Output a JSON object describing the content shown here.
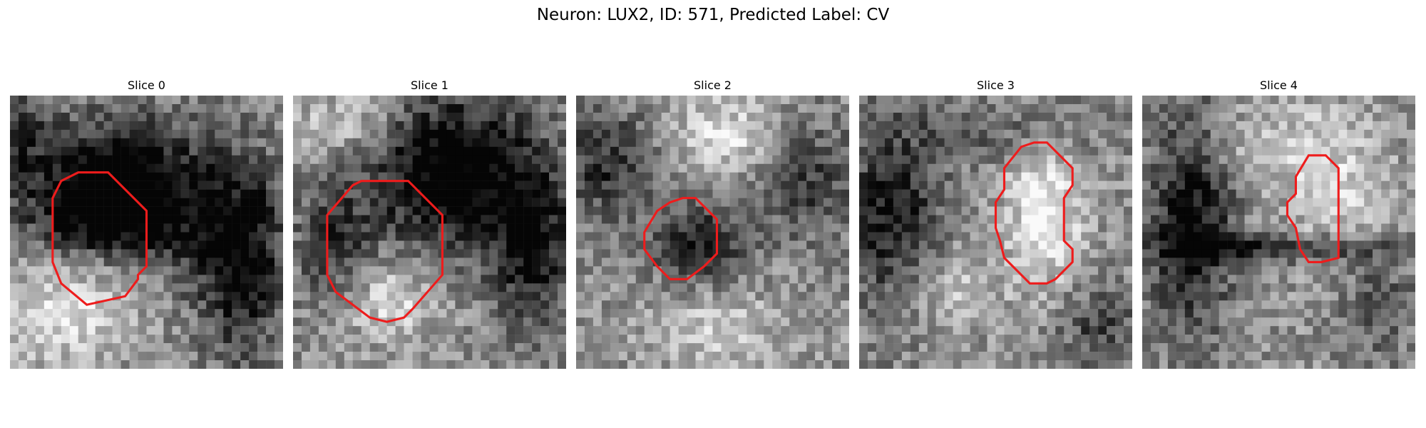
{
  "figure": {
    "title": "Neuron: LUX2, ID: 571, Predicted Label: CV"
  },
  "colors": {
    "contour": "#ee1c1c",
    "background": "#ffffff"
  },
  "grid_size": 32,
  "slices": [
    {
      "title": "Slice 0",
      "contour": [
        [
          9.0,
          9.0
        ],
        [
          11.5,
          9.0
        ],
        [
          16.0,
          13.5
        ],
        [
          16.0,
          20.0
        ],
        [
          15.0,
          21.0
        ],
        [
          15.0,
          21.5
        ],
        [
          13.5,
          23.5
        ],
        [
          9.0,
          24.5
        ],
        [
          6.0,
          22.0
        ],
        [
          5.0,
          19.5
        ],
        [
          5.0,
          12.0
        ],
        [
          6.0,
          10.0
        ],
        [
          8.0,
          9.0
        ]
      ],
      "blobs": [
        [
          0.42,
          0.38,
          0.34,
          0.28,
          -0.72
        ],
        [
          0.35,
          0.45,
          0.22,
          0.22,
          -0.28
        ],
        [
          0.38,
          0.62,
          0.2,
          0.18,
          0.3
        ],
        [
          0.85,
          0.6,
          0.16,
          0.35,
          -0.55
        ],
        [
          0.18,
          0.78,
          0.25,
          0.2,
          0.35
        ],
        [
          0.0,
          0.15,
          0.15,
          0.2,
          -0.3
        ]
      ]
    },
    {
      "title": "Slice 1",
      "contour": [
        [
          8.0,
          10.0
        ],
        [
          13.5,
          10.0
        ],
        [
          17.5,
          14.0
        ],
        [
          17.5,
          21.0
        ],
        [
          14.0,
          25.0
        ],
        [
          13.0,
          26.0
        ],
        [
          11.0,
          26.5
        ],
        [
          9.0,
          26.0
        ],
        [
          5.0,
          23.0
        ],
        [
          4.0,
          21.0
        ],
        [
          4.0,
          14.0
        ],
        [
          7.0,
          10.5
        ]
      ],
      "blobs": [
        [
          0.58,
          0.28,
          0.3,
          0.28,
          -0.7
        ],
        [
          0.88,
          0.55,
          0.15,
          0.3,
          -0.5
        ],
        [
          0.15,
          0.55,
          0.14,
          0.22,
          -0.35
        ],
        [
          0.35,
          0.75,
          0.18,
          0.15,
          0.3
        ],
        [
          0.2,
          0.1,
          0.2,
          0.12,
          0.25
        ]
      ]
    },
    {
      "title": "Slice 2",
      "contour": [
        [
          12.5,
          12.0
        ],
        [
          14.0,
          12.0
        ],
        [
          16.5,
          14.5
        ],
        [
          16.5,
          18.5
        ],
        [
          15.0,
          20.0
        ],
        [
          13.0,
          21.5
        ],
        [
          11.0,
          21.5
        ],
        [
          9.5,
          20.0
        ],
        [
          8.0,
          18.0
        ],
        [
          8.0,
          16.0
        ],
        [
          9.5,
          13.5
        ],
        [
          11.0,
          12.5
        ]
      ],
      "blobs": [
        [
          0.45,
          0.55,
          0.17,
          0.15,
          -0.45
        ],
        [
          0.12,
          0.25,
          0.2,
          0.2,
          -0.4
        ],
        [
          0.85,
          0.3,
          0.18,
          0.22,
          -0.35
        ],
        [
          0.55,
          0.15,
          0.25,
          0.15,
          0.3
        ],
        [
          0.5,
          0.85,
          0.25,
          0.15,
          0.25
        ]
      ]
    },
    {
      "title": "Slice 3",
      "contour": [
        [
          20.5,
          5.5
        ],
        [
          22.0,
          5.5
        ],
        [
          25.0,
          8.5
        ],
        [
          25.0,
          10.5
        ],
        [
          24.0,
          12.0
        ],
        [
          24.0,
          17.0
        ],
        [
          25.0,
          18.0
        ],
        [
          25.0,
          19.5
        ],
        [
          23.0,
          21.5
        ],
        [
          22.0,
          22.0
        ],
        [
          20.0,
          22.0
        ],
        [
          17.0,
          19.0
        ],
        [
          16.5,
          17.0
        ],
        [
          16.0,
          15.5
        ],
        [
          16.0,
          12.5
        ],
        [
          17.0,
          11.0
        ],
        [
          17.0,
          8.5
        ],
        [
          19.0,
          6.0
        ]
      ],
      "blobs": [
        [
          0.68,
          0.42,
          0.14,
          0.28,
          0.4
        ],
        [
          0.12,
          0.45,
          0.18,
          0.35,
          -0.5
        ],
        [
          0.55,
          0.12,
          0.35,
          0.12,
          -0.2
        ],
        [
          0.3,
          0.7,
          0.2,
          0.15,
          0.25
        ],
        [
          0.88,
          0.85,
          0.15,
          0.15,
          -0.3
        ]
      ]
    },
    {
      "title": "Slice 4",
      "contour": [
        [
          19.5,
          7.0
        ],
        [
          21.5,
          7.0
        ],
        [
          23.0,
          8.5
        ],
        [
          23.0,
          19.0
        ],
        [
          21.0,
          19.5
        ],
        [
          19.5,
          19.5
        ],
        [
          18.5,
          18.0
        ],
        [
          18.0,
          15.5
        ],
        [
          17.0,
          14.0
        ],
        [
          17.0,
          12.5
        ],
        [
          18.0,
          11.5
        ],
        [
          18.0,
          9.5
        ]
      ],
      "blobs": [
        [
          0.18,
          0.45,
          0.15,
          0.4,
          -0.55
        ],
        [
          0.5,
          0.56,
          0.4,
          0.05,
          -0.45
        ],
        [
          0.72,
          0.35,
          0.18,
          0.3,
          0.25
        ],
        [
          0.45,
          0.18,
          0.25,
          0.15,
          0.2
        ],
        [
          0.85,
          0.75,
          0.15,
          0.2,
          -0.25
        ]
      ]
    }
  ]
}
